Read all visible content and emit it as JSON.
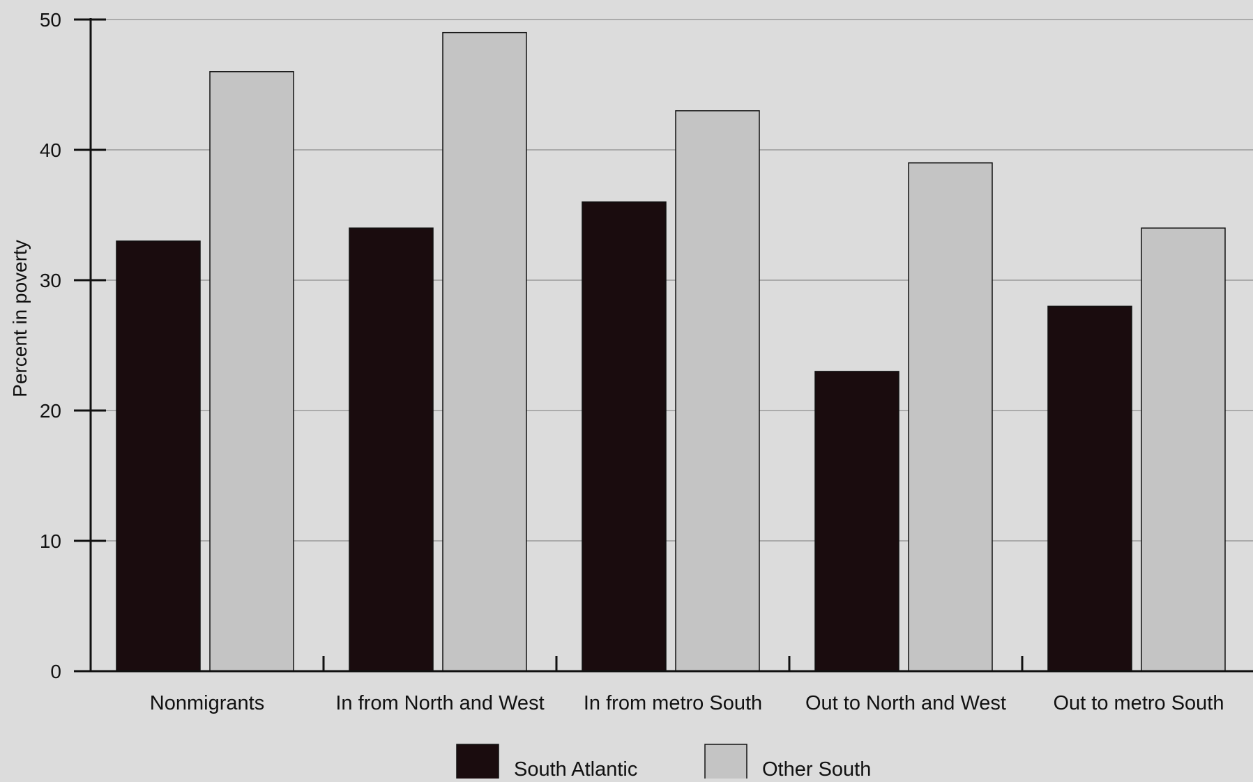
{
  "chart_data": {
    "type": "bar",
    "title": "",
    "xlabel": "",
    "ylabel": "Percent in poverty",
    "ylim": [
      0,
      50
    ],
    "yticks": [
      0,
      10,
      20,
      30,
      40,
      50
    ],
    "grid": true,
    "legend_position": "bottom-center",
    "categories": [
      "Nonmigrants",
      "In from North and West",
      "In from metro South",
      "Out to North and West",
      "Out to metro South"
    ],
    "series": [
      {
        "name": "South Atlantic",
        "color": "#1a0c0e",
        "values": [
          33,
          34,
          36,
          23,
          28
        ]
      },
      {
        "name": "Other South",
        "color": "#c4c4c4",
        "values": [
          46,
          49,
          43,
          39,
          34
        ]
      }
    ]
  }
}
